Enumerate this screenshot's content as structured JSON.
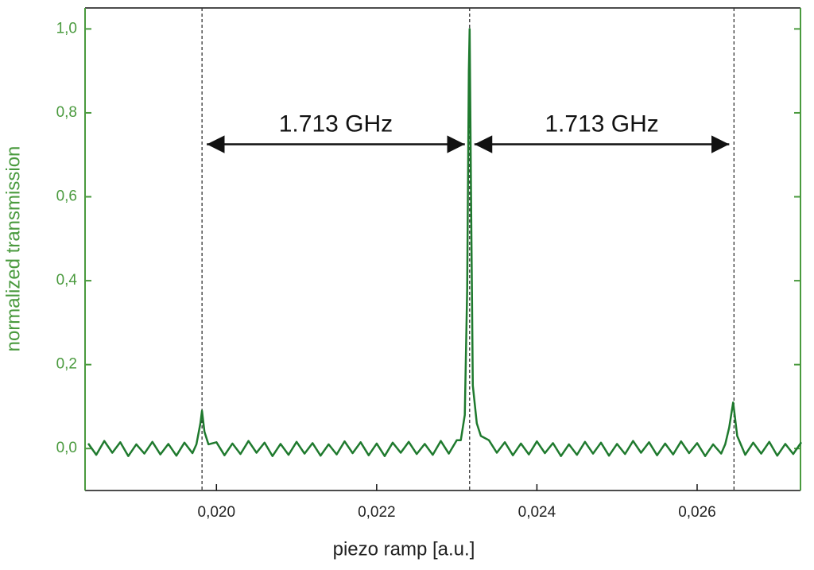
{
  "chart_data": {
    "type": "line",
    "x_label": "piezo ramp [a.u.]",
    "y_label": "normalized transmission",
    "color": "#1f7a2e",
    "axis_color_y": "#4a9a3e",
    "x": [
      0.0184,
      0.0185,
      0.0186,
      0.0187,
      0.0188,
      0.0189,
      0.019,
      0.0191,
      0.0192,
      0.0193,
      0.0194,
      0.0195,
      0.0196,
      0.0197,
      0.01975,
      0.0198,
      0.01982,
      0.01985,
      0.0199,
      0.02,
      0.0201,
      0.0202,
      0.0203,
      0.0204,
      0.0205,
      0.0206,
      0.0207,
      0.0208,
      0.0209,
      0.021,
      0.0211,
      0.0212,
      0.0213,
      0.0214,
      0.0215,
      0.0216,
      0.0217,
      0.0218,
      0.0219,
      0.022,
      0.0221,
      0.0222,
      0.0223,
      0.0224,
      0.0225,
      0.0226,
      0.0227,
      0.0228,
      0.0229,
      0.023,
      0.02305,
      0.0231,
      0.02313,
      0.02315,
      0.02316,
      0.02318,
      0.0232,
      0.02325,
      0.0233,
      0.0234,
      0.0235,
      0.0236,
      0.0237,
      0.0238,
      0.0239,
      0.024,
      0.0241,
      0.0242,
      0.0243,
      0.0244,
      0.0245,
      0.0246,
      0.0247,
      0.0248,
      0.0249,
      0.025,
      0.0251,
      0.0252,
      0.0253,
      0.0254,
      0.0255,
      0.0256,
      0.0257,
      0.0258,
      0.0259,
      0.026,
      0.0261,
      0.0262,
      0.0263,
      0.02635,
      0.0264,
      0.02645,
      0.0265,
      0.0266,
      0.0267,
      0.0268,
      0.0269,
      0.027,
      0.0271,
      0.0272,
      0.0273
    ],
    "values": [
      0.012,
      -0.015,
      0.018,
      -0.01,
      0.015,
      -0.018,
      0.01,
      -0.012,
      0.016,
      -0.014,
      0.011,
      -0.017,
      0.014,
      -0.011,
      0.01,
      0.06,
      0.09,
      0.04,
      0.01,
      0.015,
      -0.016,
      0.012,
      -0.013,
      0.018,
      -0.01,
      0.014,
      -0.018,
      0.011,
      -0.015,
      0.016,
      -0.012,
      0.013,
      -0.017,
      0.01,
      -0.014,
      0.017,
      -0.011,
      0.015,
      -0.016,
      0.012,
      -0.018,
      0.014,
      -0.01,
      0.016,
      -0.013,
      0.011,
      -0.015,
      0.018,
      -0.012,
      0.02,
      0.02,
      0.08,
      0.38,
      0.9,
      1.0,
      0.55,
      0.15,
      0.06,
      0.03,
      0.02,
      -0.01,
      0.015,
      -0.016,
      0.012,
      -0.014,
      0.017,
      -0.011,
      0.013,
      -0.018,
      0.01,
      -0.015,
      0.016,
      -0.012,
      0.014,
      -0.017,
      0.011,
      -0.013,
      0.018,
      -0.01,
      0.015,
      -0.016,
      0.012,
      -0.014,
      0.017,
      -0.011,
      0.013,
      -0.018,
      0.01,
      -0.012,
      0.01,
      0.05,
      0.11,
      0.03,
      -0.015,
      0.014,
      -0.012,
      0.016,
      -0.017,
      0.011,
      -0.013,
      0.015
    ],
    "xlim": [
      0.01836,
      0.02729
    ],
    "ylim": [
      -0.1,
      1.05
    ],
    "xticks": [
      {
        "value": 0.02,
        "label": "0,020"
      },
      {
        "value": 0.022,
        "label": "0,022"
      },
      {
        "value": 0.024,
        "label": "0,024"
      },
      {
        "value": 0.026,
        "label": "0,026"
      }
    ],
    "yticks": [
      {
        "value": 0.0,
        "label": "0,0"
      },
      {
        "value": 0.2,
        "label": "0,2"
      },
      {
        "value": 0.4,
        "label": "0,4"
      },
      {
        "value": 0.6,
        "label": "0,6"
      },
      {
        "value": 0.8,
        "label": "0,8"
      },
      {
        "value": 1.0,
        "label": "1,0"
      }
    ],
    "vlines": [
      0.01982,
      0.02316,
      0.02646
    ],
    "annotations": [
      {
        "text": "1.713 GHz",
        "x": [
          0.01982,
          0.02316
        ],
        "y": 0.725
      },
      {
        "text": "1.713 GHz",
        "x": [
          0.02316,
          0.02646
        ],
        "y": 0.725
      }
    ],
    "grid": false
  }
}
